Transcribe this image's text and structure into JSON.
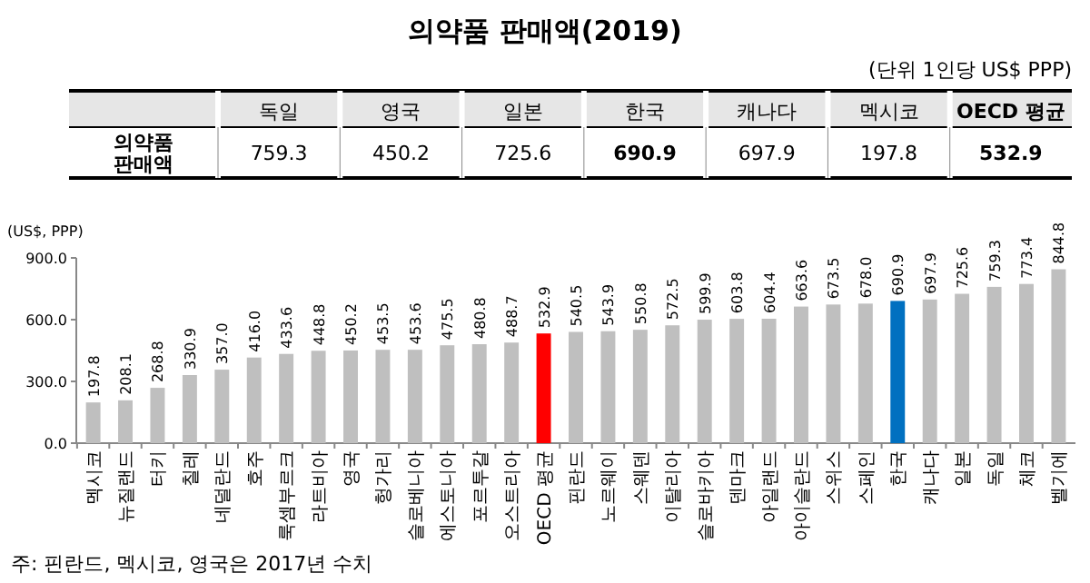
{
  "chart_data": [
    {
      "type": "other",
      "title": "의약품 판매액(2019)",
      "subtitle": "(단위 1인당 US$ PPP)",
      "ylabel": "의약품 판매액",
      "categories": [
        "독일",
        "영국",
        "일본",
        "한국",
        "캐나다",
        "멕시코",
        "OECD 평균"
      ],
      "values": [
        759.3,
        450.2,
        725.6,
        690.9,
        697.9,
        197.8,
        532.9
      ],
      "data_labels": true
    },
    {
      "type": "bar",
      "ylabel": "(US$, PPP)",
      "categories": [
        "멕시코",
        "뉴질랜드",
        "터키",
        "칠레",
        "네덜란드",
        "호주",
        "룩셈부르크",
        "라트비아",
        "영국",
        "헝가리",
        "슬로베니아",
        "에스토니아",
        "포르투갈",
        "오스트리아",
        "OECD 평균",
        "핀란드",
        "노르웨이",
        "스웨덴",
        "이탈리아",
        "슬로바키아",
        "덴마크",
        "아일랜드",
        "아이슬란드",
        "스위스",
        "스페인",
        "한국",
        "캐나다",
        "일본",
        "독일",
        "체코",
        "벨기에"
      ],
      "values": [
        197.8,
        208.1,
        268.8,
        330.9,
        357.0,
        416.0,
        433.6,
        448.8,
        450.2,
        453.5,
        453.6,
        475.5,
        480.8,
        488.7,
        532.9,
        540.5,
        543.9,
        550.8,
        572.5,
        599.9,
        603.8,
        604.4,
        663.6,
        673.5,
        678.0,
        690.9,
        697.9,
        725.6,
        759.3,
        773.4,
        844.8
      ],
      "value_labels": [
        "197.8",
        "208.1",
        "268.8",
        "330.9",
        "357.0",
        "416.0",
        "433.6",
        "448.8",
        "450.2",
        "453.5",
        "453.6",
        "475.5",
        "480.8",
        "488.7",
        "532.9",
        "540.5",
        "543.9",
        "550.8",
        "572.5",
        "599.9",
        "603.8",
        "604.4",
        "663.6",
        "673.5",
        "678.0",
        "690.9",
        "697.9",
        "725.6",
        "759.3",
        "773.4",
        "844.8"
      ],
      "colors": [
        "#bfbfbf",
        "#bfbfbf",
        "#bfbfbf",
        "#bfbfbf",
        "#bfbfbf",
        "#bfbfbf",
        "#bfbfbf",
        "#bfbfbf",
        "#bfbfbf",
        "#bfbfbf",
        "#bfbfbf",
        "#bfbfbf",
        "#bfbfbf",
        "#bfbfbf",
        "#ff0000",
        "#bfbfbf",
        "#bfbfbf",
        "#bfbfbf",
        "#bfbfbf",
        "#bfbfbf",
        "#bfbfbf",
        "#bfbfbf",
        "#bfbfbf",
        "#bfbfbf",
        "#bfbfbf",
        "#0070c0",
        "#bfbfbf",
        "#bfbfbf",
        "#bfbfbf",
        "#bfbfbf",
        "#bfbfbf"
      ],
      "ylim": [
        0,
        900
      ],
      "yticks": [
        {
          "value": 0,
          "label": "0.0"
        },
        {
          "value": 300,
          "label": "300.0"
        },
        {
          "value": 600,
          "label": "600.0"
        },
        {
          "value": 900,
          "label": "900.0"
        }
      ],
      "grid": false,
      "annotations": [
        "주: 핀란드, 멕시코, 영국은 2017년 수치"
      ]
    }
  ]
}
